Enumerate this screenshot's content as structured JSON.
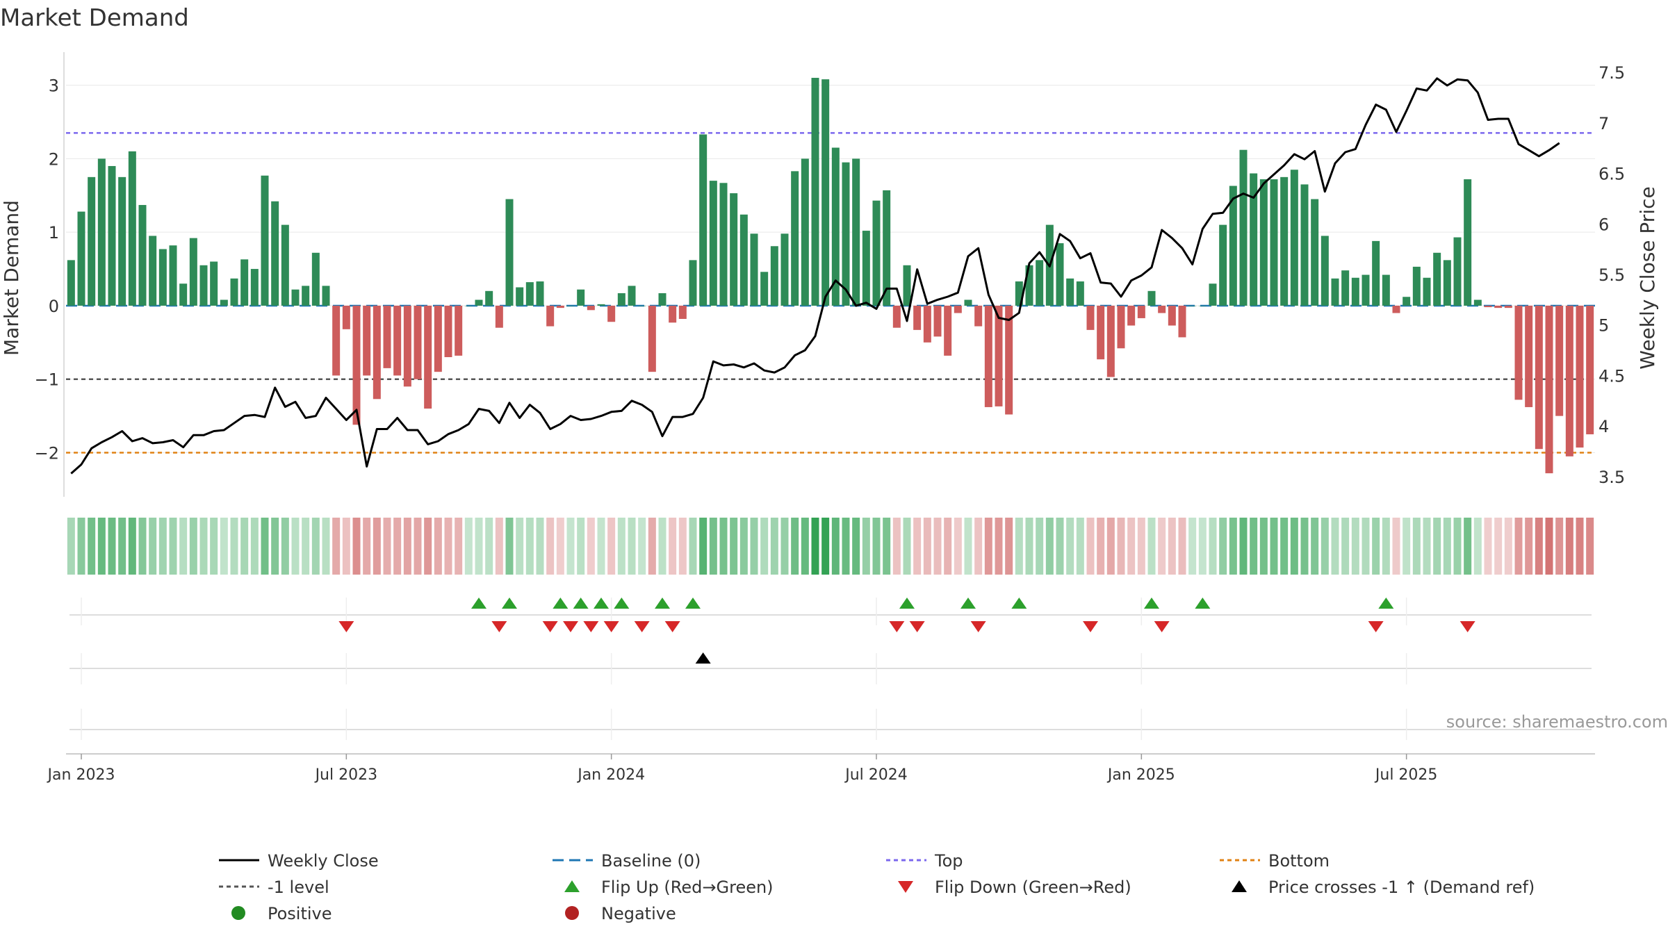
{
  "chart_data": {
    "type": "bar",
    "title": "Market Demand",
    "ylabel_left": "Market Demand",
    "ylabel_right": "Weekly Close Price",
    "source": "source: sharemaestro.com",
    "ylim_left": [
      -2.6,
      3.45
    ],
    "ylim_right": [
      3.3,
      7.7
    ],
    "yticks_left": [
      {
        "v": 3,
        "label": "3"
      },
      {
        "v": 2,
        "label": "2"
      },
      {
        "v": 1,
        "label": "1"
      },
      {
        "v": 0,
        "label": "0"
      },
      {
        "v": -1,
        "label": "−1"
      },
      {
        "v": -2,
        "label": "−2"
      }
    ],
    "yticks_right": [
      {
        "v": 7.5,
        "label": "7.5"
      },
      {
        "v": 7,
        "label": "7"
      },
      {
        "v": 6.5,
        "label": "6.5"
      },
      {
        "v": 6,
        "label": "6"
      },
      {
        "v": 5.5,
        "label": "5.5"
      },
      {
        "v": 5,
        "label": "5"
      },
      {
        "v": 4.5,
        "label": "4.5"
      },
      {
        "v": 4,
        "label": "4"
      },
      {
        "v": 3.5,
        "label": "3.5"
      }
    ],
    "xticks": [
      {
        "week": 1,
        "label": "Jan 2023"
      },
      {
        "week": 27,
        "label": "Jul 2023"
      },
      {
        "week": 53,
        "label": "Jan 2024"
      },
      {
        "week": 79,
        "label": "Jul 2024"
      },
      {
        "week": 105,
        "label": "Jan 2025"
      },
      {
        "week": 131,
        "label": "Jul 2025"
      }
    ],
    "reference_lines": {
      "top": 2.35,
      "level_minus1": -1,
      "bottom": -2,
      "baseline": 0
    },
    "colors": {
      "positive": "#2e8b57",
      "negative": "#cd5c5c",
      "close": "#000000",
      "baseline": "#1f77b4",
      "top": "#7b68ee",
      "level": "#555555",
      "bottom": "#e08214",
      "flip_up": "#2ca02c",
      "flip_down": "#d62728"
    },
    "demand": [
      0.62,
      1.28,
      1.75,
      2.0,
      1.9,
      1.75,
      2.1,
      1.37,
      0.95,
      0.77,
      0.82,
      0.3,
      0.92,
      0.55,
      0.6,
      0.08,
      0.37,
      0.63,
      0.5,
      1.77,
      1.42,
      1.1,
      0.22,
      0.27,
      0.72,
      0.27,
      -0.95,
      -0.32,
      -1.62,
      -0.95,
      -1.27,
      -0.85,
      -0.95,
      -1.1,
      -1.0,
      -1.4,
      -0.9,
      -0.7,
      -0.68,
      0.0,
      0.08,
      0.2,
      -0.3,
      1.45,
      0.25,
      0.32,
      0.33,
      -0.28,
      -0.03,
      0.0,
      0.22,
      -0.06,
      0.02,
      -0.22,
      0.17,
      0.27,
      0.0,
      -0.9,
      0.17,
      -0.23,
      -0.18,
      0.62,
      2.33,
      1.7,
      1.67,
      1.53,
      1.24,
      0.98,
      0.46,
      0.81,
      0.98,
      1.83,
      2.0,
      3.1,
      3.08,
      2.15,
      1.95,
      2.0,
      1.02,
      1.43,
      1.57,
      -0.3,
      0.55,
      -0.33,
      -0.5,
      -0.42,
      -0.68,
      -0.1,
      0.08,
      -0.28,
      -1.38,
      -1.37,
      -1.48,
      0.33,
      0.55,
      0.62,
      1.1,
      0.85,
      0.37,
      0.33,
      -0.33,
      -0.73,
      -0.97,
      -0.58,
      -0.27,
      -0.17,
      0.2,
      -0.1,
      -0.27,
      -0.43,
      0.0,
      0.0,
      0.3,
      1.1,
      1.63,
      2.12,
      1.8,
      1.72,
      1.72,
      1.75,
      1.85,
      1.65,
      1.45,
      0.95,
      0.37,
      0.48,
      0.38,
      0.42,
      0.88,
      0.42,
      -0.1,
      0.12,
      0.53,
      0.38,
      0.72,
      0.62,
      0.93,
      1.72,
      0.08,
      -0.02,
      -0.03,
      -0.03,
      -1.28,
      -1.38,
      -1.95,
      -2.28,
      -1.5,
      -2.05,
      -1.93,
      -1.75
    ],
    "weekly_close": [
      3.53,
      3.62,
      3.78,
      3.84,
      3.89,
      3.95,
      3.85,
      3.88,
      3.83,
      3.84,
      3.86,
      3.79,
      3.91,
      3.91,
      3.95,
      3.96,
      4.03,
      4.1,
      4.11,
      4.09,
      4.38,
      4.19,
      4.24,
      4.08,
      4.1,
      4.28,
      4.17,
      4.06,
      4.16,
      3.6,
      3.97,
      3.97,
      4.08,
      3.96,
      3.96,
      3.82,
      3.85,
      3.92,
      3.96,
      4.02,
      4.17,
      4.15,
      4.03,
      4.23,
      4.08,
      4.21,
      4.13,
      3.97,
      4.02,
      4.1,
      4.06,
      4.07,
      4.1,
      4.14,
      4.15,
      4.25,
      4.21,
      4.14,
      3.9,
      4.09,
      4.09,
      4.12,
      4.28,
      4.64,
      4.6,
      4.61,
      4.58,
      4.62,
      4.55,
      4.53,
      4.58,
      4.7,
      4.75,
      4.89,
      5.28,
      5.44,
      5.35,
      5.19,
      5.22,
      5.16,
      5.36,
      5.36,
      5.04,
      5.55,
      5.21,
      5.25,
      5.28,
      5.32,
      5.68,
      5.76,
      5.3,
      5.07,
      5.05,
      5.12,
      5.61,
      5.72,
      5.58,
      5.9,
      5.83,
      5.66,
      5.71,
      5.42,
      5.41,
      5.28,
      5.44,
      5.49,
      5.57,
      5.94,
      5.86,
      5.76,
      5.6,
      5.95,
      6.1,
      6.11,
      6.25,
      6.3,
      6.26,
      6.4,
      6.49,
      6.58,
      6.69,
      6.64,
      6.72,
      6.32,
      6.6,
      6.71,
      6.74,
      6.98,
      7.18,
      7.13,
      6.91,
      7.12,
      7.34,
      7.32,
      7.44,
      7.37,
      7.43,
      7.42,
      7.3,
      7.03,
      7.04,
      7.04,
      6.79,
      6.73,
      6.67,
      6.73,
      6.8
    ],
    "flip_up_weeks": [
      40,
      43,
      48,
      50,
      52,
      54,
      58,
      61,
      82,
      88,
      93,
      106,
      111,
      129
    ],
    "flip_down_weeks": [
      27,
      42,
      47,
      49,
      51,
      53,
      56,
      59,
      81,
      83,
      89,
      100,
      107,
      128,
      137
    ],
    "price_cross_weeks": [
      62
    ],
    "legend": [
      {
        "key": "close",
        "label": "Weekly Close"
      },
      {
        "key": "baseline",
        "label": "Baseline (0)"
      },
      {
        "key": "top",
        "label": "Top"
      },
      {
        "key": "bottom",
        "label": "Bottom"
      },
      {
        "key": "level",
        "label": "-1 level"
      },
      {
        "key": "flip_up",
        "label": "Flip Up (Red→Green)"
      },
      {
        "key": "flip_down",
        "label": "Flip Down (Green→Red)"
      },
      {
        "key": "cross",
        "label": "Price crosses -1 ↑ (Demand ref)"
      },
      {
        "key": "positive",
        "label": "Positive"
      },
      {
        "key": "negative",
        "label": "Negative"
      }
    ]
  }
}
